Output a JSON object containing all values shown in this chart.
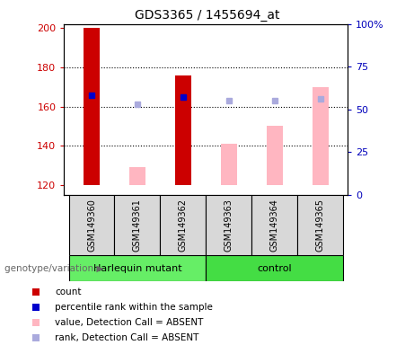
{
  "title": "GDS3365 / 1455694_at",
  "samples": [
    "GSM149360",
    "GSM149361",
    "GSM149362",
    "GSM149363",
    "GSM149364",
    "GSM149365"
  ],
  "ylim_left": [
    115,
    202
  ],
  "ylim_right": [
    0,
    100
  ],
  "yticks_left": [
    120,
    140,
    160,
    180,
    200
  ],
  "ytick_labels_left": [
    "120",
    "140",
    "160",
    "180",
    "200"
  ],
  "ytick_labels_right": [
    "0",
    "25",
    "50",
    "75",
    "100%"
  ],
  "yticks_right": [
    0,
    25,
    50,
    75,
    100
  ],
  "red_bars": {
    "GSM149360": [
      120,
      200
    ],
    "GSM149362": [
      120,
      176
    ]
  },
  "pink_bars": {
    "GSM149361": [
      120,
      129
    ],
    "GSM149363": [
      120,
      141
    ],
    "GSM149364": [
      120,
      150
    ],
    "GSM149365": [
      120,
      170
    ]
  },
  "blue_squares": {
    "GSM149360": 166,
    "GSM149362": 165
  },
  "light_blue_squares": {
    "GSM149361": 161,
    "GSM149363": 163,
    "GSM149364": 163,
    "GSM149365": 164
  },
  "legend_items": [
    {
      "label": "count",
      "color": "#CC0000"
    },
    {
      "label": "percentile rank within the sample",
      "color": "#0000CC"
    },
    {
      "label": "value, Detection Call = ABSENT",
      "color": "#FFB6C1"
    },
    {
      "label": "rank, Detection Call = ABSENT",
      "color": "#AAAADD"
    }
  ],
  "bg_color": "#D8D8D8",
  "plot_bg": "#FFFFFF",
  "left_label_color": "#CC0000",
  "right_label_color": "#0000BB",
  "harlequin_color": "#66EE66",
  "control_color": "#44DD44",
  "bar_width": 0.35,
  "genotype_label": "genotype/variation ▶"
}
